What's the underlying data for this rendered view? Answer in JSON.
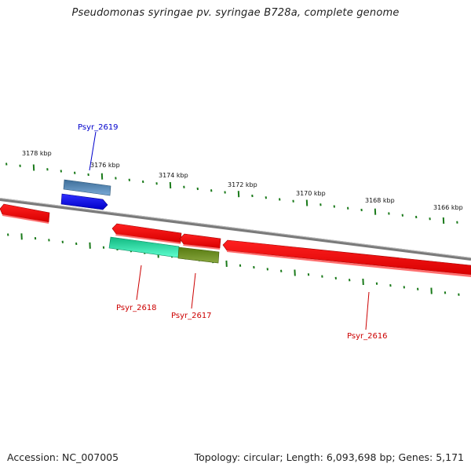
{
  "title": "Pseudomonas syringae pv. syringae B728a, complete genome",
  "footer": {
    "accession": "Accession: NC_007005",
    "summary": "Topology: circular; Length: 6,093,698 bp; Genes: 5,171"
  },
  "scale_labels": [
    "3178 kbp",
    "3176 kbp",
    "3174 kbp",
    "3172 kbp",
    "3170 kbp",
    "3168 kbp",
    "3166 kbp"
  ],
  "genes": [
    {
      "name": "Psyr_2619",
      "color": "#0000cc"
    },
    {
      "name": "Psyr_2618",
      "color": "#cc0000"
    },
    {
      "name": "Psyr_2617",
      "color": "#cc0000"
    },
    {
      "name": "Psyr_2616",
      "color": "#cc0000"
    }
  ],
  "colors": {
    "forward_gene": "#0000ff",
    "reverse_gene": "#ff0000",
    "backbone": "#888888",
    "ticks": "#1a7a1a",
    "feature_steelblue": "#4f86b8",
    "feature_aqua": "#22e0a0",
    "feature_olive": "#6b8e23"
  }
}
